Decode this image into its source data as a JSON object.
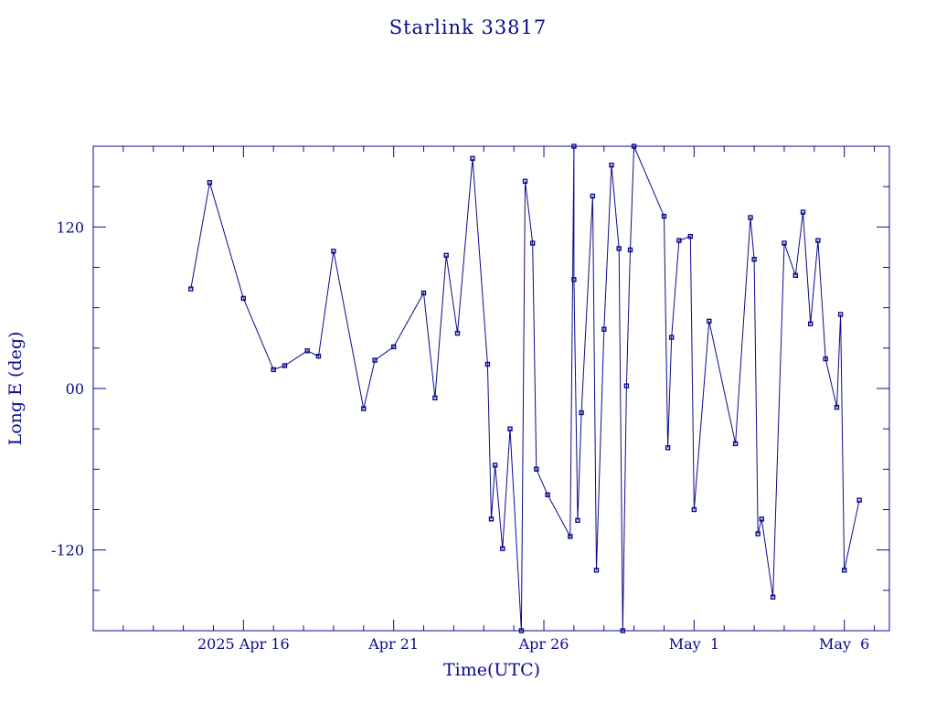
{
  "colors": {
    "ink": "#0a0a8c",
    "background": "#ffffff"
  },
  "chart_data": {
    "type": "line",
    "title": "Starlink 33817",
    "xlabel": "Time(UTC)",
    "ylabel": "Long E (deg)",
    "x_unit": "days (UTC)",
    "xlim": [
      "2025-04-11",
      "2025-05-07 12:00"
    ],
    "ylim": [
      -180,
      180
    ],
    "x_ticks": [
      {
        "date": "2025-04-16",
        "label": "2025 Apr 16"
      },
      {
        "date": "2025-04-21",
        "label": "Apr 21"
      },
      {
        "date": "2025-04-26",
        "label": "Apr 26"
      },
      {
        "date": "2025-05-01",
        "label": "May  1"
      },
      {
        "date": "2025-05-06",
        "label": "May  6"
      }
    ],
    "y_ticks": [
      {
        "value": -120,
        "label": "-120"
      },
      {
        "value": 0,
        "label": "00"
      },
      {
        "value": 120,
        "label": "120"
      }
    ],
    "grid": false,
    "legend": "none",
    "marker": "open-square",
    "wraps_at_longitude_boundary": true,
    "points": [
      {
        "t": "2025-04-14 06:00",
        "lon": 74
      },
      {
        "t": "2025-04-14 21:00",
        "lon": 153
      },
      {
        "t": "2025-04-16 00:00",
        "lon": 67
      },
      {
        "t": "2025-04-17 00:00",
        "lon": 14
      },
      {
        "t": "2025-04-17 09:00",
        "lon": 17
      },
      {
        "t": "2025-04-18 03:00",
        "lon": 28
      },
      {
        "t": "2025-04-18 12:00",
        "lon": 24
      },
      {
        "t": "2025-04-19 00:00",
        "lon": 102
      },
      {
        "t": "2025-04-20 00:00",
        "lon": -15
      },
      {
        "t": "2025-04-20 09:00",
        "lon": 21
      },
      {
        "t": "2025-04-21 00:00",
        "lon": 31
      },
      {
        "t": "2025-04-22 00:00",
        "lon": 71
      },
      {
        "t": "2025-04-22 09:00",
        "lon": -7
      },
      {
        "t": "2025-04-22 18:00",
        "lon": 99
      },
      {
        "t": "2025-04-23 03:00",
        "lon": 41
      },
      {
        "t": "2025-04-23 15:00",
        "lon": 171
      },
      {
        "t": "2025-04-24 03:00",
        "lon": 18
      },
      {
        "t": "2025-04-24 06:00",
        "lon": -97
      },
      {
        "t": "2025-04-24 09:00",
        "lon": -57
      },
      {
        "t": "2025-04-24 15:00",
        "lon": -119
      },
      {
        "t": "2025-04-24 21:00",
        "lon": -30
      },
      {
        "t": "2025-04-25 06:00",
        "lon": -180,
        "note": "wraps to +180"
      },
      {
        "t": "2025-04-25 09:00",
        "lon": 154
      },
      {
        "t": "2025-04-25 15:00",
        "lon": 108
      },
      {
        "t": "2025-04-25 18:00",
        "lon": -60
      },
      {
        "t": "2025-04-26 03:00",
        "lon": -79
      },
      {
        "t": "2025-04-26 21:00",
        "lon": -110
      },
      {
        "t": "2025-04-27 00:00",
        "lon": 180,
        "note": "wraps to -180"
      },
      {
        "t": "2025-04-27 00:00",
        "lon": 81
      },
      {
        "t": "2025-04-27 03:00",
        "lon": -98
      },
      {
        "t": "2025-04-27 06:00",
        "lon": -18
      },
      {
        "t": "2025-04-27 15:00",
        "lon": 143
      },
      {
        "t": "2025-04-27 18:00",
        "lon": -135
      },
      {
        "t": "2025-04-28 00:00",
        "lon": 44
      },
      {
        "t": "2025-04-28 06:00",
        "lon": 166
      },
      {
        "t": "2025-04-28 12:00",
        "lon": 104
      },
      {
        "t": "2025-04-28 15:00",
        "lon": -180
      },
      {
        "t": "2025-04-28 18:00",
        "lon": 2
      },
      {
        "t": "2025-04-28 21:00",
        "lon": 103
      },
      {
        "t": "2025-04-29 00:00",
        "lon": 180
      },
      {
        "t": "2025-04-30 00:00",
        "lon": 128
      },
      {
        "t": "2025-04-30 03:00",
        "lon": -44
      },
      {
        "t": "2025-04-30 06:00",
        "lon": 38
      },
      {
        "t": "2025-04-30 12:00",
        "lon": 110
      },
      {
        "t": "2025-04-30 21:00",
        "lon": 113
      },
      {
        "t": "2025-05-01 00:00",
        "lon": -90
      },
      {
        "t": "2025-05-01 12:00",
        "lon": 50
      },
      {
        "t": "2025-05-02 09:00",
        "lon": -41
      },
      {
        "t": "2025-05-02 21:00",
        "lon": 127
      },
      {
        "t": "2025-05-03 00:00",
        "lon": 96
      },
      {
        "t": "2025-05-03 03:00",
        "lon": -108
      },
      {
        "t": "2025-05-03 06:00",
        "lon": -97
      },
      {
        "t": "2025-05-03 15:00",
        "lon": -155
      },
      {
        "t": "2025-05-04 00:00",
        "lon": 108
      },
      {
        "t": "2025-05-04 09:00",
        "lon": 84
      },
      {
        "t": "2025-05-04 15:00",
        "lon": 131
      },
      {
        "t": "2025-05-04 21:00",
        "lon": 48
      },
      {
        "t": "2025-05-05 03:00",
        "lon": 110
      },
      {
        "t": "2025-05-05 09:00",
        "lon": 22
      },
      {
        "t": "2025-05-05 18:00",
        "lon": -14
      },
      {
        "t": "2025-05-05 21:00",
        "lon": 55
      },
      {
        "t": "2025-05-06 00:00",
        "lon": -135
      },
      {
        "t": "2025-05-06 12:00",
        "lon": -83
      }
    ]
  }
}
